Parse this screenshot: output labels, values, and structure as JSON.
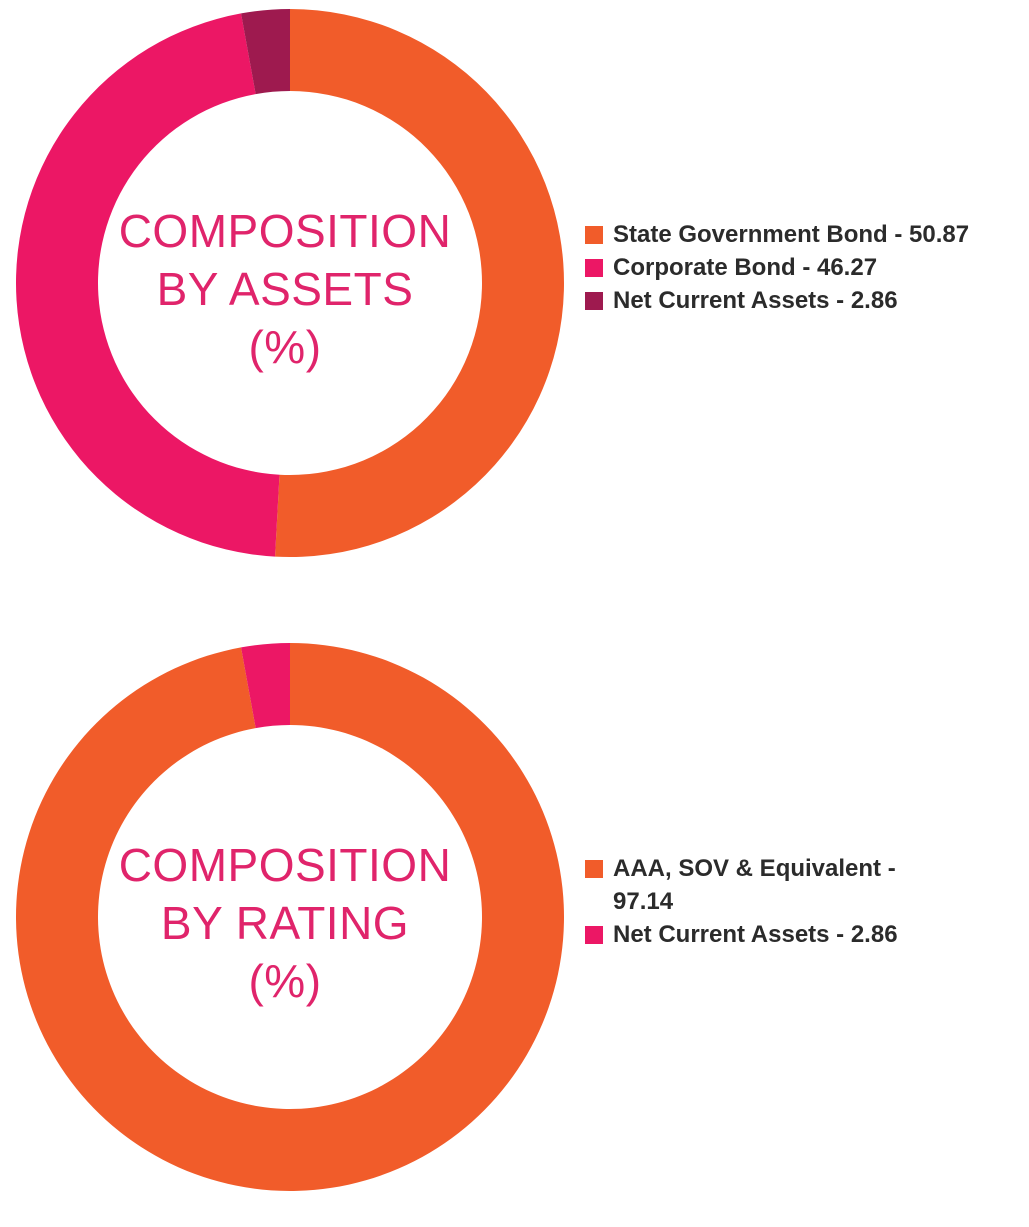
{
  "colors": {
    "orange": "#f15c2a",
    "pink": "#ec1765",
    "maroon": "#9e1a4f",
    "center_text": "#e0246b"
  },
  "chart_data": [
    {
      "type": "pie",
      "variant": "donut",
      "center_label": [
        "COMPOSITION",
        "BY ASSETS",
        "(%)"
      ],
      "legend_position": "right",
      "series": [
        {
          "name": "State Government Bond",
          "value": 50.87,
          "label": "State Government Bond - 50.87",
          "color": "#f15c2a"
        },
        {
          "name": "Corporate Bond",
          "value": 46.27,
          "label": "Corporate Bond - 46.27",
          "color": "#ec1765"
        },
        {
          "name": "Net Current Assets",
          "value": 2.86,
          "label": "Net Current Assets - 2.86",
          "color": "#9e1a4f"
        }
      ]
    },
    {
      "type": "pie",
      "variant": "donut",
      "center_label": [
        "COMPOSITION",
        "BY RATING",
        "(%)"
      ],
      "legend_position": "right",
      "series": [
        {
          "name": "AAA, SOV & Equivalent",
          "value": 97.14,
          "label": "AAA, SOV & Equivalent - 97.14",
          "color": "#f15c2a"
        },
        {
          "name": "Net Current Assets",
          "value": 2.86,
          "label": "Net Current Assets - 2.86",
          "color": "#ec1765"
        }
      ]
    }
  ]
}
